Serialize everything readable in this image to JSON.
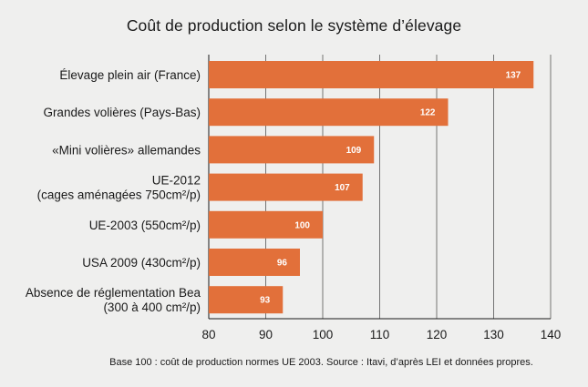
{
  "chart_data": {
    "type": "bar",
    "orientation": "horizontal",
    "title": "Coût de production selon le système d’élevage",
    "footnote": "Base 100 : coût de production normes UE 2003. Source : Itavi, d’après LEI et données propres.",
    "categories": [
      [
        "Élevage plein air (France)"
      ],
      [
        "Grandes volières (Pays-Bas)"
      ],
      [
        "«Mini volières» allemandes"
      ],
      [
        "UE-2012",
        "(cages aménagées 750cm²/p)"
      ],
      [
        "UE-2003 (550cm²/p)"
      ],
      [
        "USA 2009 (430cm²/p)"
      ],
      [
        "Absence de réglementation Bea",
        "(300 à 400 cm²/p)"
      ]
    ],
    "values": [
      137,
      122,
      109,
      107,
      100,
      96,
      93
    ],
    "value_labels": [
      "137",
      "122",
      "109",
      "107",
      "100",
      "96",
      "93"
    ],
    "xlim": [
      80,
      140
    ],
    "xticks": [
      80,
      90,
      100,
      110,
      120,
      130,
      140
    ],
    "xtick_labels": [
      "80",
      "90",
      "100",
      "110",
      "120",
      "130",
      "140"
    ],
    "bar_color": "#e2703a",
    "grid": "vertical-lines",
    "legend": "none"
  }
}
